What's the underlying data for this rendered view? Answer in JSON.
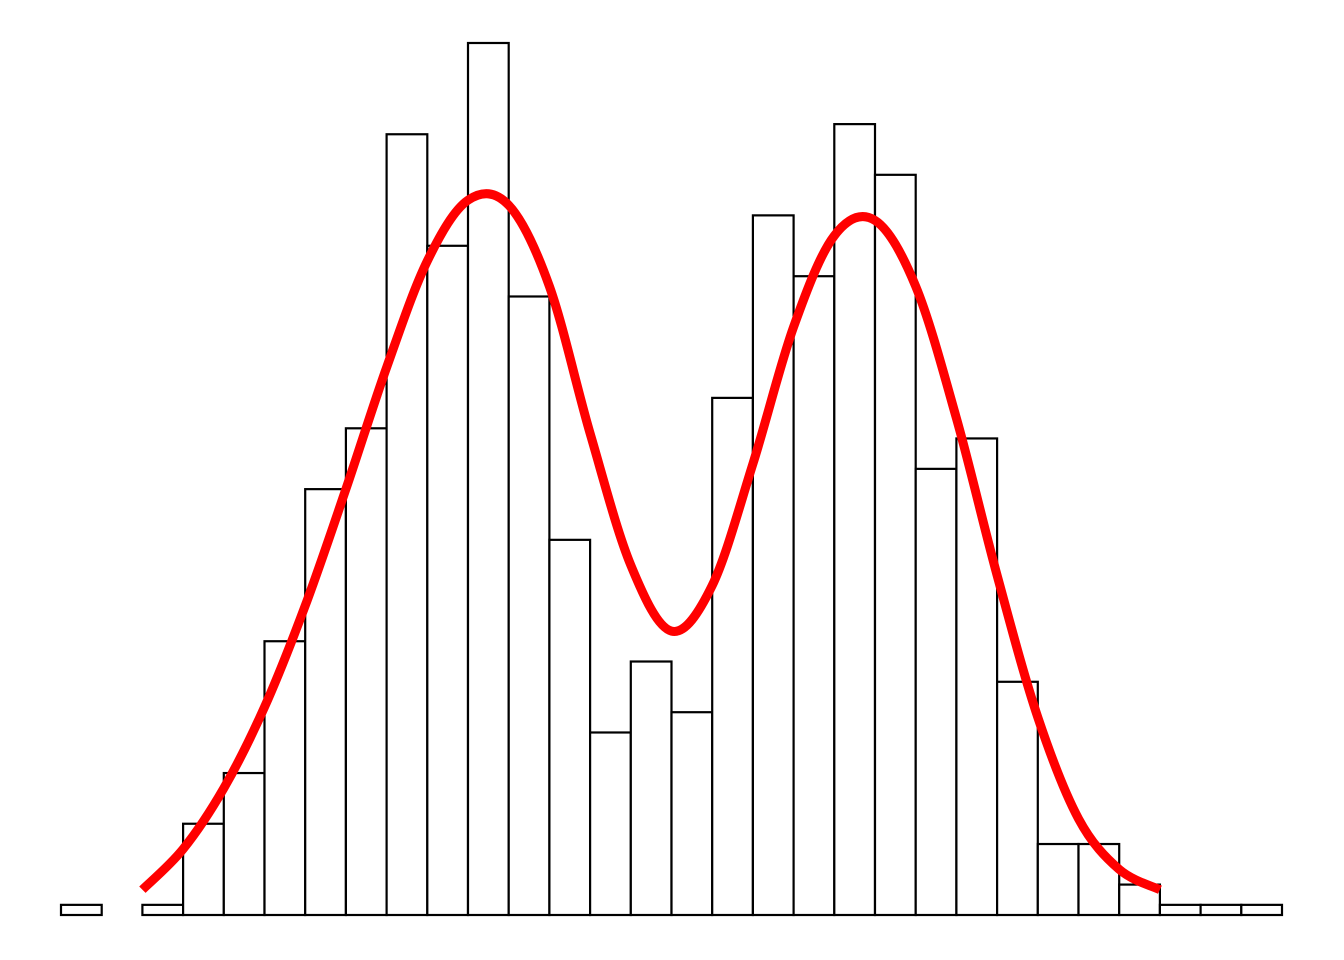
{
  "chart_data": {
    "type": "bar",
    "title": "",
    "xlabel": "",
    "ylabel": "",
    "bin_count": 30,
    "values": [
      1,
      0,
      1,
      9,
      14,
      27,
      42,
      48,
      77,
      66,
      86,
      61,
      37,
      18,
      25,
      20,
      51,
      69,
      63,
      78,
      73,
      44,
      47,
      23,
      7,
      7,
      3,
      1,
      1,
      1
    ],
    "ylim": [
      0,
      86
    ],
    "grid": false,
    "legend": "none",
    "bar_fill": "#ffffff",
    "bar_stroke": "#000000",
    "curve": {
      "type": "line",
      "color": "#ff0000",
      "x": [
        2,
        3,
        4,
        5,
        6,
        7,
        8,
        9,
        10,
        11,
        12,
        13,
        14,
        15,
        16,
        17,
        18,
        19,
        20,
        21,
        22,
        23,
        24,
        25,
        26,
        27
      ],
      "y": [
        2.5,
        6.5,
        12.5,
        20.5,
        30.5,
        42.0,
        54.0,
        64.5,
        70.5,
        70.0,
        62.0,
        47.5,
        34.5,
        28.0,
        32.5,
        44.5,
        58.0,
        67.0,
        68.5,
        62.0,
        49.0,
        33.5,
        19.5,
        9.5,
        4.5,
        2.5
      ]
    }
  }
}
